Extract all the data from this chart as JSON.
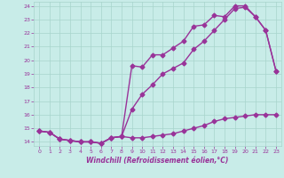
{
  "xlabel": "Windchill (Refroidissement éolien,°C)",
  "bg_color": "#c8ece8",
  "grid_color": "#a8d4cc",
  "line_color": "#993399",
  "xlim": [
    -0.5,
    23.5
  ],
  "ylim": [
    13.7,
    24.3
  ],
  "xticks": [
    0,
    1,
    2,
    3,
    4,
    5,
    6,
    7,
    8,
    9,
    10,
    11,
    12,
    13,
    14,
    15,
    16,
    17,
    18,
    19,
    20,
    21,
    22,
    23
  ],
  "yticks": [
    14,
    15,
    16,
    17,
    18,
    19,
    20,
    21,
    22,
    23,
    24
  ],
  "line1_x": [
    0,
    1,
    2,
    3,
    4,
    5,
    6,
    7,
    8,
    9,
    10,
    11,
    12,
    13,
    14,
    15,
    16,
    17,
    18,
    19,
    20,
    21,
    22,
    23
  ],
  "line1_y": [
    14.8,
    14.7,
    14.2,
    14.1,
    14.0,
    14.0,
    13.9,
    14.3,
    14.4,
    14.3,
    14.3,
    14.4,
    14.5,
    14.6,
    14.8,
    15.0,
    15.2,
    15.5,
    15.7,
    15.8,
    15.9,
    16.0,
    16.0,
    16.0
  ],
  "line2_x": [
    0,
    1,
    2,
    3,
    4,
    5,
    6,
    7,
    8,
    9,
    10,
    11,
    12,
    13,
    14,
    15,
    16,
    17,
    18,
    19,
    20,
    21,
    22,
    23
  ],
  "line2_y": [
    14.8,
    14.7,
    14.2,
    14.1,
    14.0,
    14.0,
    13.9,
    14.3,
    14.4,
    16.4,
    17.5,
    18.2,
    19.0,
    19.4,
    19.8,
    20.8,
    21.4,
    22.2,
    23.0,
    23.8,
    23.9,
    23.2,
    22.2,
    19.2
  ],
  "line3_x": [
    0,
    1,
    2,
    3,
    4,
    5,
    6,
    7,
    8,
    9,
    10,
    11,
    12,
    13,
    14,
    15,
    16,
    17,
    18,
    19,
    20,
    21,
    22,
    23
  ],
  "line3_y": [
    14.8,
    14.7,
    14.2,
    14.1,
    14.0,
    14.0,
    13.9,
    14.3,
    14.4,
    19.6,
    19.5,
    20.4,
    20.4,
    20.9,
    21.4,
    22.5,
    22.6,
    23.3,
    23.2,
    24.0,
    24.0,
    23.2,
    22.2,
    19.2
  ],
  "marker": "D",
  "markersize": 2.5,
  "linewidth": 1.0
}
